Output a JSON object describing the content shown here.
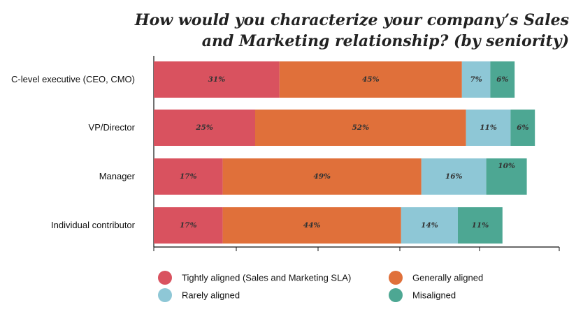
{
  "chart_data": {
    "type": "bar",
    "orientation": "horizontal",
    "stacked": true,
    "title_lines": [
      "How would you characterize your company’s Sales",
      "and Marketing relationship? (by seniority)"
    ],
    "categories": [
      "C-level executive (CEO, CMO)",
      "VP/Director",
      "Manager",
      "Individual contributor"
    ],
    "series": [
      {
        "name": "Tightly aligned (Sales and Marketing SLA)",
        "color": "#d9525f",
        "values": [
          31,
          25,
          17,
          17
        ],
        "labels": [
          "31%",
          "25%",
          "17%",
          "17%"
        ]
      },
      {
        "name": "Generally aligned",
        "color": "#e0703a",
        "values": [
          45,
          52,
          49,
          44
        ],
        "labels": [
          "45%",
          "52%",
          "49%",
          "44%"
        ]
      },
      {
        "name": "Rarely aligned",
        "color": "#8ec7d6",
        "values": [
          7,
          11,
          16,
          14
        ],
        "labels": [
          "7%",
          "11%",
          "16%",
          "14%"
        ]
      },
      {
        "name": "Misaligned",
        "color": "#4da793",
        "values": [
          6,
          6,
          10,
          11
        ],
        "labels": [
          "6%",
          "6%",
          "10%",
          "11%"
        ]
      }
    ],
    "xlim": [
      0,
      100
    ],
    "grid": false,
    "legend_position": "bottom"
  }
}
